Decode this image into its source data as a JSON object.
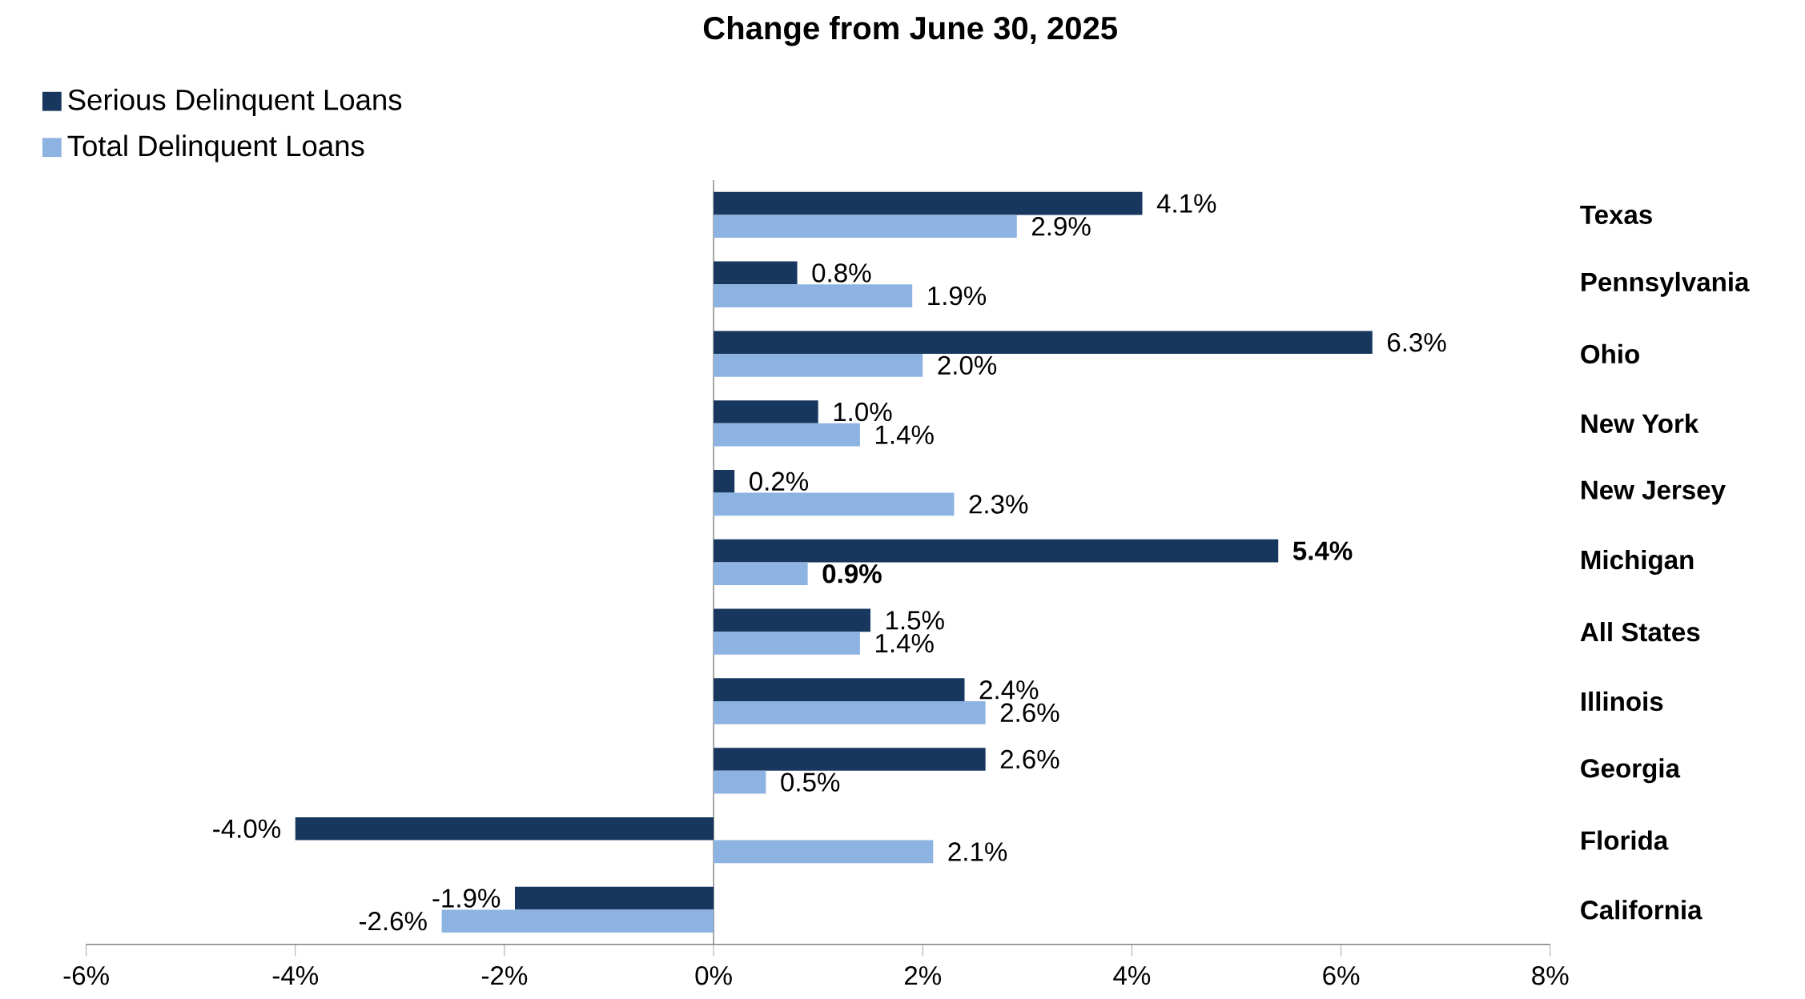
{
  "chart_data": {
    "type": "bar",
    "orientation": "horizontal",
    "title": "Change from June 30, 2025",
    "categories": [
      "Texas",
      "Pennsylvania",
      "Ohio",
      "New York",
      "New Jersey",
      "Michigan",
      "All States",
      "Illinois",
      "Georgia",
      "Florida",
      "California"
    ],
    "series": [
      {
        "name": "Serious Delinquent Loans",
        "color": "#17375e",
        "values": [
          4.1,
          0.8,
          6.3,
          1.0,
          0.2,
          5.4,
          1.5,
          2.4,
          2.6,
          -4.0,
          -1.9
        ],
        "value_labels": [
          "4.1%",
          "0.8%",
          "6.3%",
          "1.0%",
          "0.2%",
          "**5.4%**",
          "1.5%",
          "2.4%",
          "2.6%",
          "-4.0%",
          "-1.9%"
        ]
      },
      {
        "name": "Total Delinquent Loans",
        "color": "#8db3e2",
        "values": [
          2.9,
          1.9,
          2.0,
          1.4,
          2.3,
          0.9,
          1.4,
          2.6,
          0.5,
          2.1,
          -2.6
        ],
        "value_labels": [
          "2.9%",
          "1.9%",
          "2.0%",
          "1.4%",
          "2.3%",
          "**0.9%**",
          "1.4%",
          "2.6%",
          "0.5%",
          "2.1%",
          "-2.6%"
        ]
      }
    ],
    "xlim": [
      -6,
      8
    ],
    "xticks": [
      {
        "value": -6,
        "label": "-6%"
      },
      {
        "value": -4,
        "label": "-4%"
      },
      {
        "value": -2,
        "label": "-2%"
      },
      {
        "value": 0,
        "label": "0%"
      },
      {
        "value": 2,
        "label": "2%"
      },
      {
        "value": 4,
        "label": "4%"
      },
      {
        "value": 6,
        "label": "6%"
      },
      {
        "value": 8,
        "label": "8%"
      }
    ],
    "legend": "top left"
  }
}
